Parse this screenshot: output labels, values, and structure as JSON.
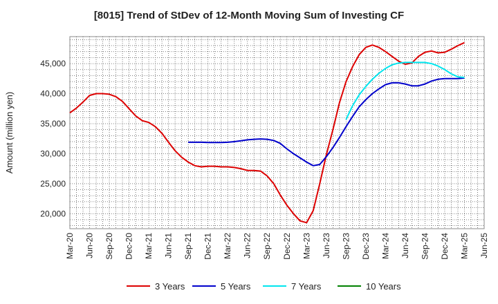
{
  "chart_data": {
    "type": "line",
    "title": "[8015]  Trend of StDev of 12-Month Moving Sum of Investing CF",
    "xlabel": "",
    "ylabel": "Amount (million yen)",
    "ylim": [
      17500,
      49500
    ],
    "yticks": [
      20000,
      25000,
      30000,
      35000,
      40000,
      45000
    ],
    "ytick_labels": [
      "20,000",
      "25,000",
      "30,000",
      "35,000",
      "40,000",
      "45,000"
    ],
    "xtick_labels": [
      "Mar-20",
      "Jun-20",
      "Sep-20",
      "Dec-20",
      "Mar-21",
      "Jun-21",
      "Sep-21",
      "Dec-21",
      "Mar-22",
      "Jun-22",
      "Sep-22",
      "Dec-22",
      "Mar-23",
      "Jun-23",
      "Sep-23",
      "Dec-23",
      "Mar-24",
      "Jun-24",
      "Sep-24",
      "Dec-24",
      "Mar-25",
      "Jun-25"
    ],
    "grid": true,
    "legend_position": "bottom",
    "colors": {
      "3 Years": "#dd0000",
      "5 Years": "#0000cc",
      "7 Years": "#00e5ee",
      "10 Years": "#008000"
    },
    "series": [
      {
        "name": "3 Years",
        "x": [
          "2020-03",
          "2020-04",
          "2020-05",
          "2020-06",
          "2020-07",
          "2020-08",
          "2020-09",
          "2020-10",
          "2020-11",
          "2020-12",
          "2021-01",
          "2021-02",
          "2021-03",
          "2021-04",
          "2021-05",
          "2021-06",
          "2021-07",
          "2021-08",
          "2021-09",
          "2021-10",
          "2021-11",
          "2021-12",
          "2022-01",
          "2022-02",
          "2022-03",
          "2022-04",
          "2022-05",
          "2022-06",
          "2022-07",
          "2022-08",
          "2022-09",
          "2022-10",
          "2022-11",
          "2022-12",
          "2023-01",
          "2023-02",
          "2023-03",
          "2023-04",
          "2023-05",
          "2023-06",
          "2023-07",
          "2023-08",
          "2023-09",
          "2023-10",
          "2023-11",
          "2023-12",
          "2024-01",
          "2024-02",
          "2024-03",
          "2024-04",
          "2024-05",
          "2024-06",
          "2024-07",
          "2024-08",
          "2024-09",
          "2024-10",
          "2024-11",
          "2024-12",
          "2025-01",
          "2025-02",
          "2025-03"
        ],
        "values": [
          36800,
          37600,
          38600,
          39700,
          40000,
          40000,
          39900,
          39500,
          38700,
          37500,
          36300,
          35500,
          35200,
          34500,
          33400,
          31900,
          30500,
          29400,
          28600,
          28000,
          27800,
          27900,
          27900,
          27800,
          27800,
          27700,
          27500,
          27200,
          27200,
          27100,
          26300,
          25000,
          23100,
          21400,
          20000,
          18800,
          18500,
          20500,
          25000,
          29800,
          34000,
          38500,
          42000,
          44500,
          46500,
          47700,
          48100,
          47700,
          47000,
          46200,
          45400,
          44900,
          45100,
          46200,
          46900,
          47100,
          46800,
          46900,
          47400,
          48000,
          48500
        ]
      },
      {
        "name": "5 Years",
        "x": [
          "2021-09",
          "2021-10",
          "2021-11",
          "2021-12",
          "2022-01",
          "2022-02",
          "2022-03",
          "2022-04",
          "2022-05",
          "2022-06",
          "2022-07",
          "2022-08",
          "2022-09",
          "2022-10",
          "2022-11",
          "2022-12",
          "2023-01",
          "2023-02",
          "2023-03",
          "2023-04",
          "2023-05",
          "2023-06",
          "2023-07",
          "2023-08",
          "2023-09",
          "2023-10",
          "2023-11",
          "2023-12",
          "2024-01",
          "2024-02",
          "2024-03",
          "2024-04",
          "2024-05",
          "2024-06",
          "2024-07",
          "2024-08",
          "2024-09",
          "2024-10",
          "2024-11",
          "2024-12",
          "2025-01",
          "2025-02",
          "2025-03"
        ],
        "values": [
          31900,
          31900,
          31900,
          31850,
          31850,
          31850,
          31900,
          32000,
          32150,
          32300,
          32400,
          32450,
          32400,
          32200,
          31700,
          30800,
          30000,
          29300,
          28600,
          28000,
          28200,
          29500,
          31000,
          32700,
          34500,
          36200,
          37800,
          39000,
          40000,
          40800,
          41500,
          41800,
          41800,
          41600,
          41300,
          41300,
          41600,
          42100,
          42400,
          42500,
          42500,
          42500,
          42600
        ]
      },
      {
        "name": "7 Years",
        "x": [
          "2023-09",
          "2023-10",
          "2023-11",
          "2023-12",
          "2024-01",
          "2024-02",
          "2024-03",
          "2024-04",
          "2024-05",
          "2024-06",
          "2024-07",
          "2024-08",
          "2024-09",
          "2024-10",
          "2024-11",
          "2024-12",
          "2025-01",
          "2025-02",
          "2025-03"
        ],
        "values": [
          35700,
          38000,
          39800,
          41200,
          42400,
          43400,
          44200,
          44800,
          45100,
          45200,
          45200,
          45200,
          45200,
          45000,
          44600,
          44000,
          43300,
          42800,
          42700
        ]
      },
      {
        "name": "10 Years",
        "x": [],
        "values": []
      }
    ]
  }
}
